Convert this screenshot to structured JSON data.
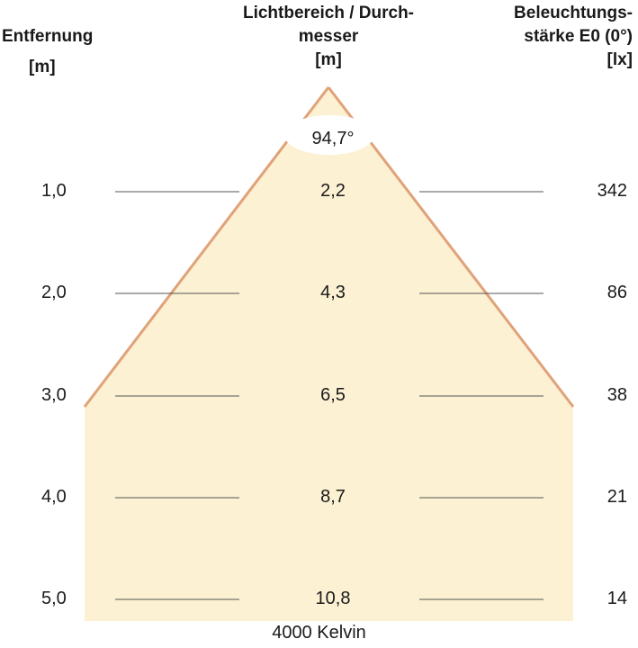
{
  "headers": {
    "distance": "Entfernung",
    "distance_unit": "[m]",
    "diameter": "Lichtbereich / Durch-\nmesser\n[m]",
    "illuminance": "Beleuchtungs-\nstärke E0 (0°)\n[lx]"
  },
  "beam_angle": "94,7°",
  "rows": [
    {
      "distance": "1,0",
      "diameter": "2,2",
      "illuminance": "342"
    },
    {
      "distance": "2,0",
      "diameter": "4,3",
      "illuminance": "86"
    },
    {
      "distance": "3,0",
      "diameter": "6,5",
      "illuminance": "38"
    },
    {
      "distance": "4,0",
      "diameter": "8,7",
      "illuminance": "21"
    },
    {
      "distance": "5,0",
      "diameter": "10,8",
      "illuminance": "14"
    }
  ],
  "footer": "4000 Kelvin",
  "colors": {
    "beam_fill": "#fdf1d3",
    "beam_edge": "#e0a279",
    "guide_line": "#555555"
  }
}
